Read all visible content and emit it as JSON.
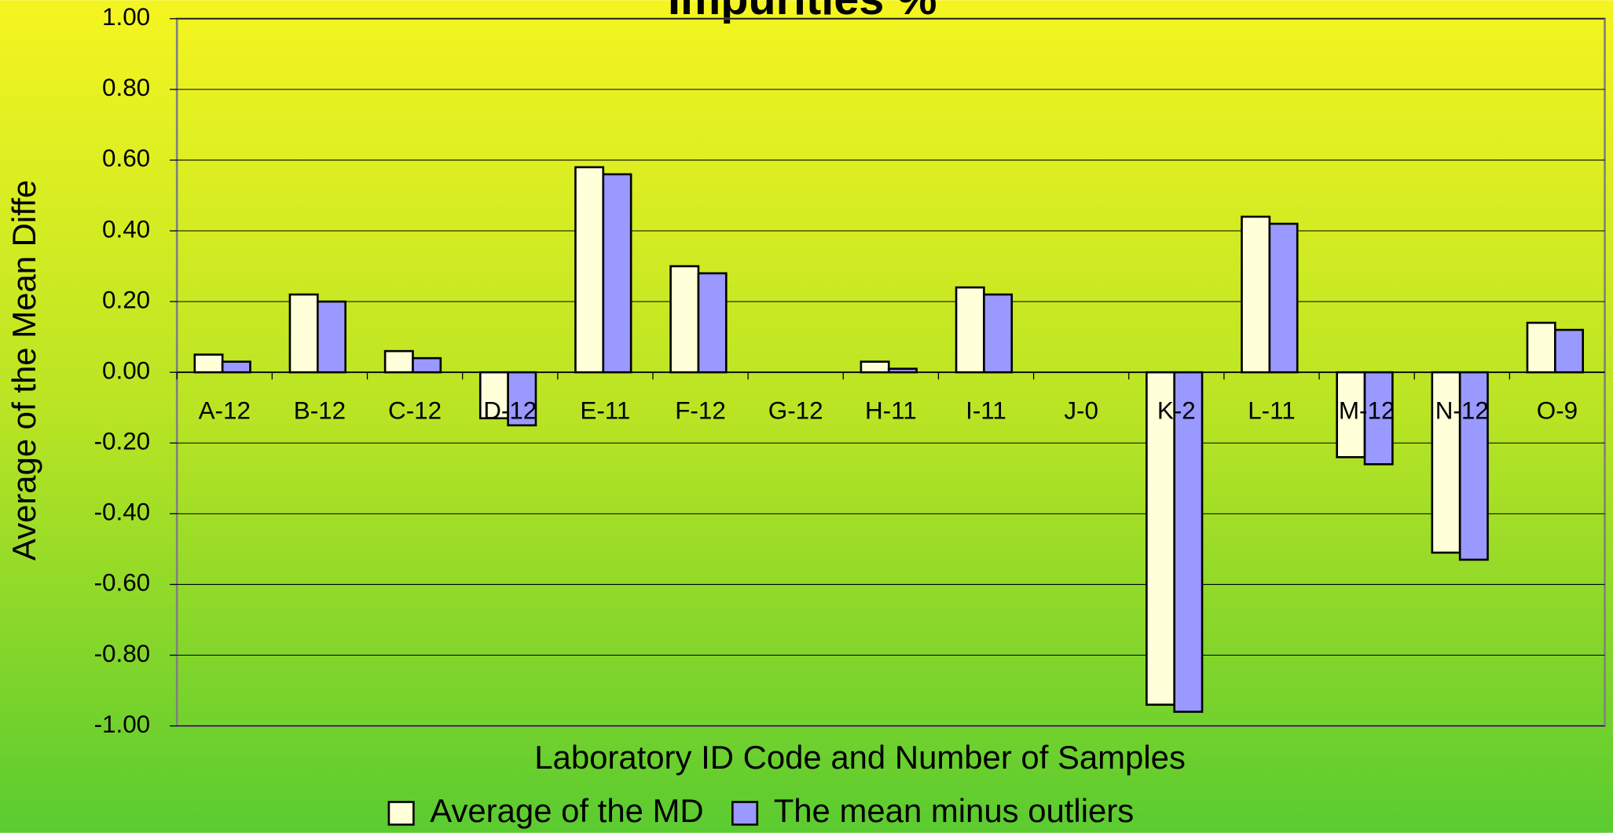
{
  "chart_data": {
    "type": "bar",
    "title": "Impurities %",
    "x_label": "Laboratory ID Code and Number of Samples",
    "y_label": "Average of the Mean Diffe",
    "categories": [
      "A-12",
      "B-12",
      "C-12",
      "D-12",
      "E-11",
      "F-12",
      "G-12",
      "H-11",
      "I-11",
      "J-0",
      "K-2",
      "L-11",
      "M-12",
      "N-12",
      "O-9"
    ],
    "series": [
      {
        "name": "Average of the MD",
        "color": "#ffffd9",
        "values": [
          0.05,
          0.22,
          0.06,
          -0.13,
          0.58,
          0.3,
          0,
          0.03,
          0.24,
          0,
          -0.94,
          0.44,
          -0.24,
          -0.51,
          0.14
        ]
      },
      {
        "name": "The mean minus outliers",
        "color": "#9999ff",
        "values": [
          0.03,
          0.2,
          0.04,
          -0.15,
          0.56,
          0.28,
          0,
          0.01,
          0.22,
          0,
          -0.96,
          0.42,
          -0.26,
          -0.53,
          0.12
        ]
      }
    ],
    "ylim": [
      -1.0,
      1.0
    ],
    "yticks": [
      {
        "value": -1.0,
        "label": "-1.00"
      },
      {
        "value": -0.8,
        "label": "-0.80"
      },
      {
        "value": -0.6,
        "label": "-0.60"
      },
      {
        "value": -0.4,
        "label": "-0.40"
      },
      {
        "value": -0.2,
        "label": "-0.20"
      },
      {
        "value": 0,
        "label": "0.00"
      },
      {
        "value": 0.2,
        "label": "0.20"
      },
      {
        "value": 0.4,
        "label": "0.40"
      },
      {
        "value": 0.6,
        "label": "0.60"
      },
      {
        "value": 0.8,
        "label": "0.80"
      },
      {
        "value": 1.0,
        "label": "1.00"
      }
    ],
    "grid": true,
    "legend": "bottom"
  }
}
